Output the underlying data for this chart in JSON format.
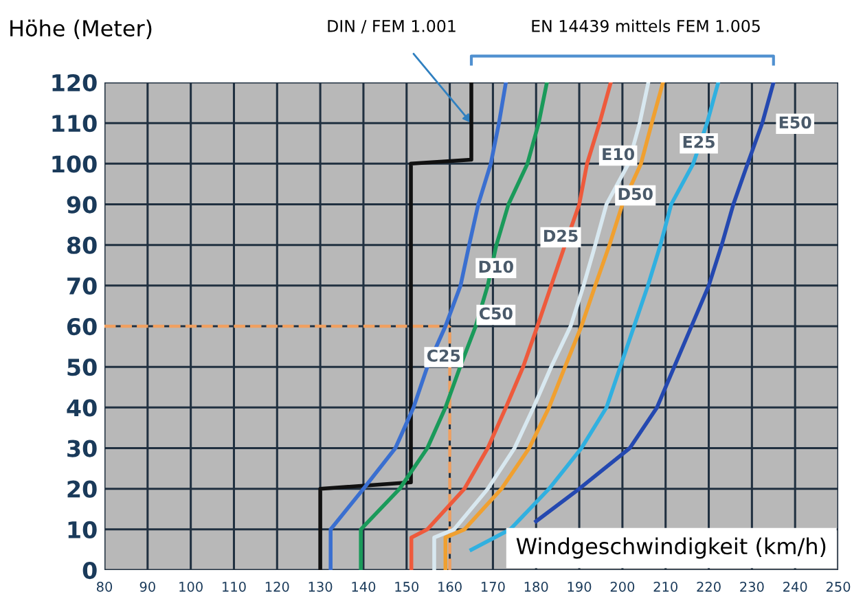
{
  "chart_data": {
    "type": "line",
    "ylabel": "Höhe (Meter)",
    "xlabel": "Windgeschwindigkeit (km/h)",
    "xlim": [
      80,
      250
    ],
    "xticks": [
      80,
      90,
      100,
      110,
      120,
      130,
      140,
      150,
      160,
      170,
      180,
      190,
      200,
      210,
      220,
      230,
      240,
      250
    ],
    "ylim": [
      0,
      120
    ],
    "yticks": [
      0,
      10,
      20,
      30,
      40,
      50,
      60,
      70,
      80,
      90,
      100,
      110,
      120
    ],
    "grid": true,
    "marker": "none",
    "line_style": "solid",
    "series": [
      {
        "color": "#111111",
        "x": [
          130,
          130,
          151,
          151,
          165,
          165
        ],
        "values": [
          0,
          20,
          21.6,
          100,
          101,
          120
        ]
      },
      {
        "color": "#3a6fd0",
        "x": [
          132.4,
          132.4,
          140,
          147.4,
          151.6,
          154.8,
          159,
          162.5,
          164.5,
          166.6,
          169.5,
          171.4,
          173
        ],
        "values": [
          0,
          10,
          20,
          30,
          40,
          50,
          60,
          70,
          80,
          90,
          100,
          110,
          120
        ]
      },
      {
        "color": "#1a9a5a",
        "x": [
          139.4,
          139.4,
          148.4,
          154.8,
          159,
          162.4,
          166,
          168.8,
          170.8,
          173.6,
          178,
          180.6,
          182.5
        ],
        "values": [
          0,
          10,
          20,
          30,
          40,
          50,
          60,
          70,
          80,
          90,
          100,
          110,
          120
        ]
      },
      {
        "color": "#ee5a3c",
        "x": [
          151.1,
          151.1,
          154.8,
          163.4,
          168.8,
          173,
          177,
          180.3,
          183.5,
          186.7,
          190,
          191.8,
          194.7,
          197.3
        ],
        "values": [
          0,
          8,
          10,
          20,
          30,
          40,
          50,
          60,
          70,
          80,
          90,
          100,
          110,
          120
        ]
      },
      {
        "color": "#d8e8f0",
        "x": [
          156.4,
          156.4,
          161,
          168.8,
          175,
          179.4,
          183.5,
          188,
          191,
          193.7,
          196.3,
          201.4,
          204,
          206
        ],
        "values": [
          0,
          8,
          10,
          20,
          30,
          40,
          50,
          60,
          70,
          80,
          90,
          100,
          110,
          120
        ]
      },
      {
        "color": "#f0a030",
        "x": [
          159,
          159,
          163.4,
          172,
          178.4,
          183,
          186.7,
          190.5,
          193.7,
          197,
          200,
          204.3,
          206.8,
          209.4
        ],
        "values": [
          0,
          8,
          10,
          20,
          30,
          40,
          50,
          60,
          70,
          80,
          90,
          100,
          110,
          120
        ]
      },
      {
        "color": "#30b0e0",
        "x": [
          165,
          174,
          183,
          190.5,
          196.3,
          199.5,
          202.7,
          205.9,
          208.8,
          211.3,
          216.4,
          219.6,
          222.2
        ],
        "values": [
          5,
          10,
          20,
          30,
          40,
          50,
          60,
          70,
          80,
          90,
          100,
          110,
          120
        ]
      },
      {
        "color": "#2448b0",
        "x": [
          180,
          190,
          201.7,
          208,
          212,
          216,
          220,
          223,
          225.7,
          229,
          232.4,
          235
        ],
        "values": [
          12,
          20,
          30,
          40,
          50,
          60,
          70,
          80,
          90,
          100,
          110,
          120
        ]
      }
    ],
    "ref_lines": [
      {
        "axis": "y",
        "value": 60,
        "color": "#f0a060",
        "line_style": "dashed"
      },
      {
        "axis": "x",
        "value": 160,
        "color": "#f0a060",
        "line_style": "dashed"
      }
    ],
    "annotations": [
      {
        "text": "C25",
        "x": 158.6,
        "y": 52.4
      },
      {
        "text": "C50",
        "x": 170.7,
        "y": 62.8
      },
      {
        "text": "D10",
        "x": 170.7,
        "y": 74.3
      },
      {
        "text": "D25",
        "x": 185.7,
        "y": 81.9
      },
      {
        "text": "D50",
        "x": 203,
        "y": 92.2
      },
      {
        "text": "E10",
        "x": 199,
        "y": 102
      },
      {
        "text": "E25",
        "x": 217.7,
        "y": 105
      },
      {
        "text": "E50",
        "x": 240,
        "y": 109.8
      },
      {
        "text": "DIN / FEM 1.001",
        "x": 165,
        "y": 110
      },
      "EN 14439 mittels FEM 1.005"
    ]
  }
}
